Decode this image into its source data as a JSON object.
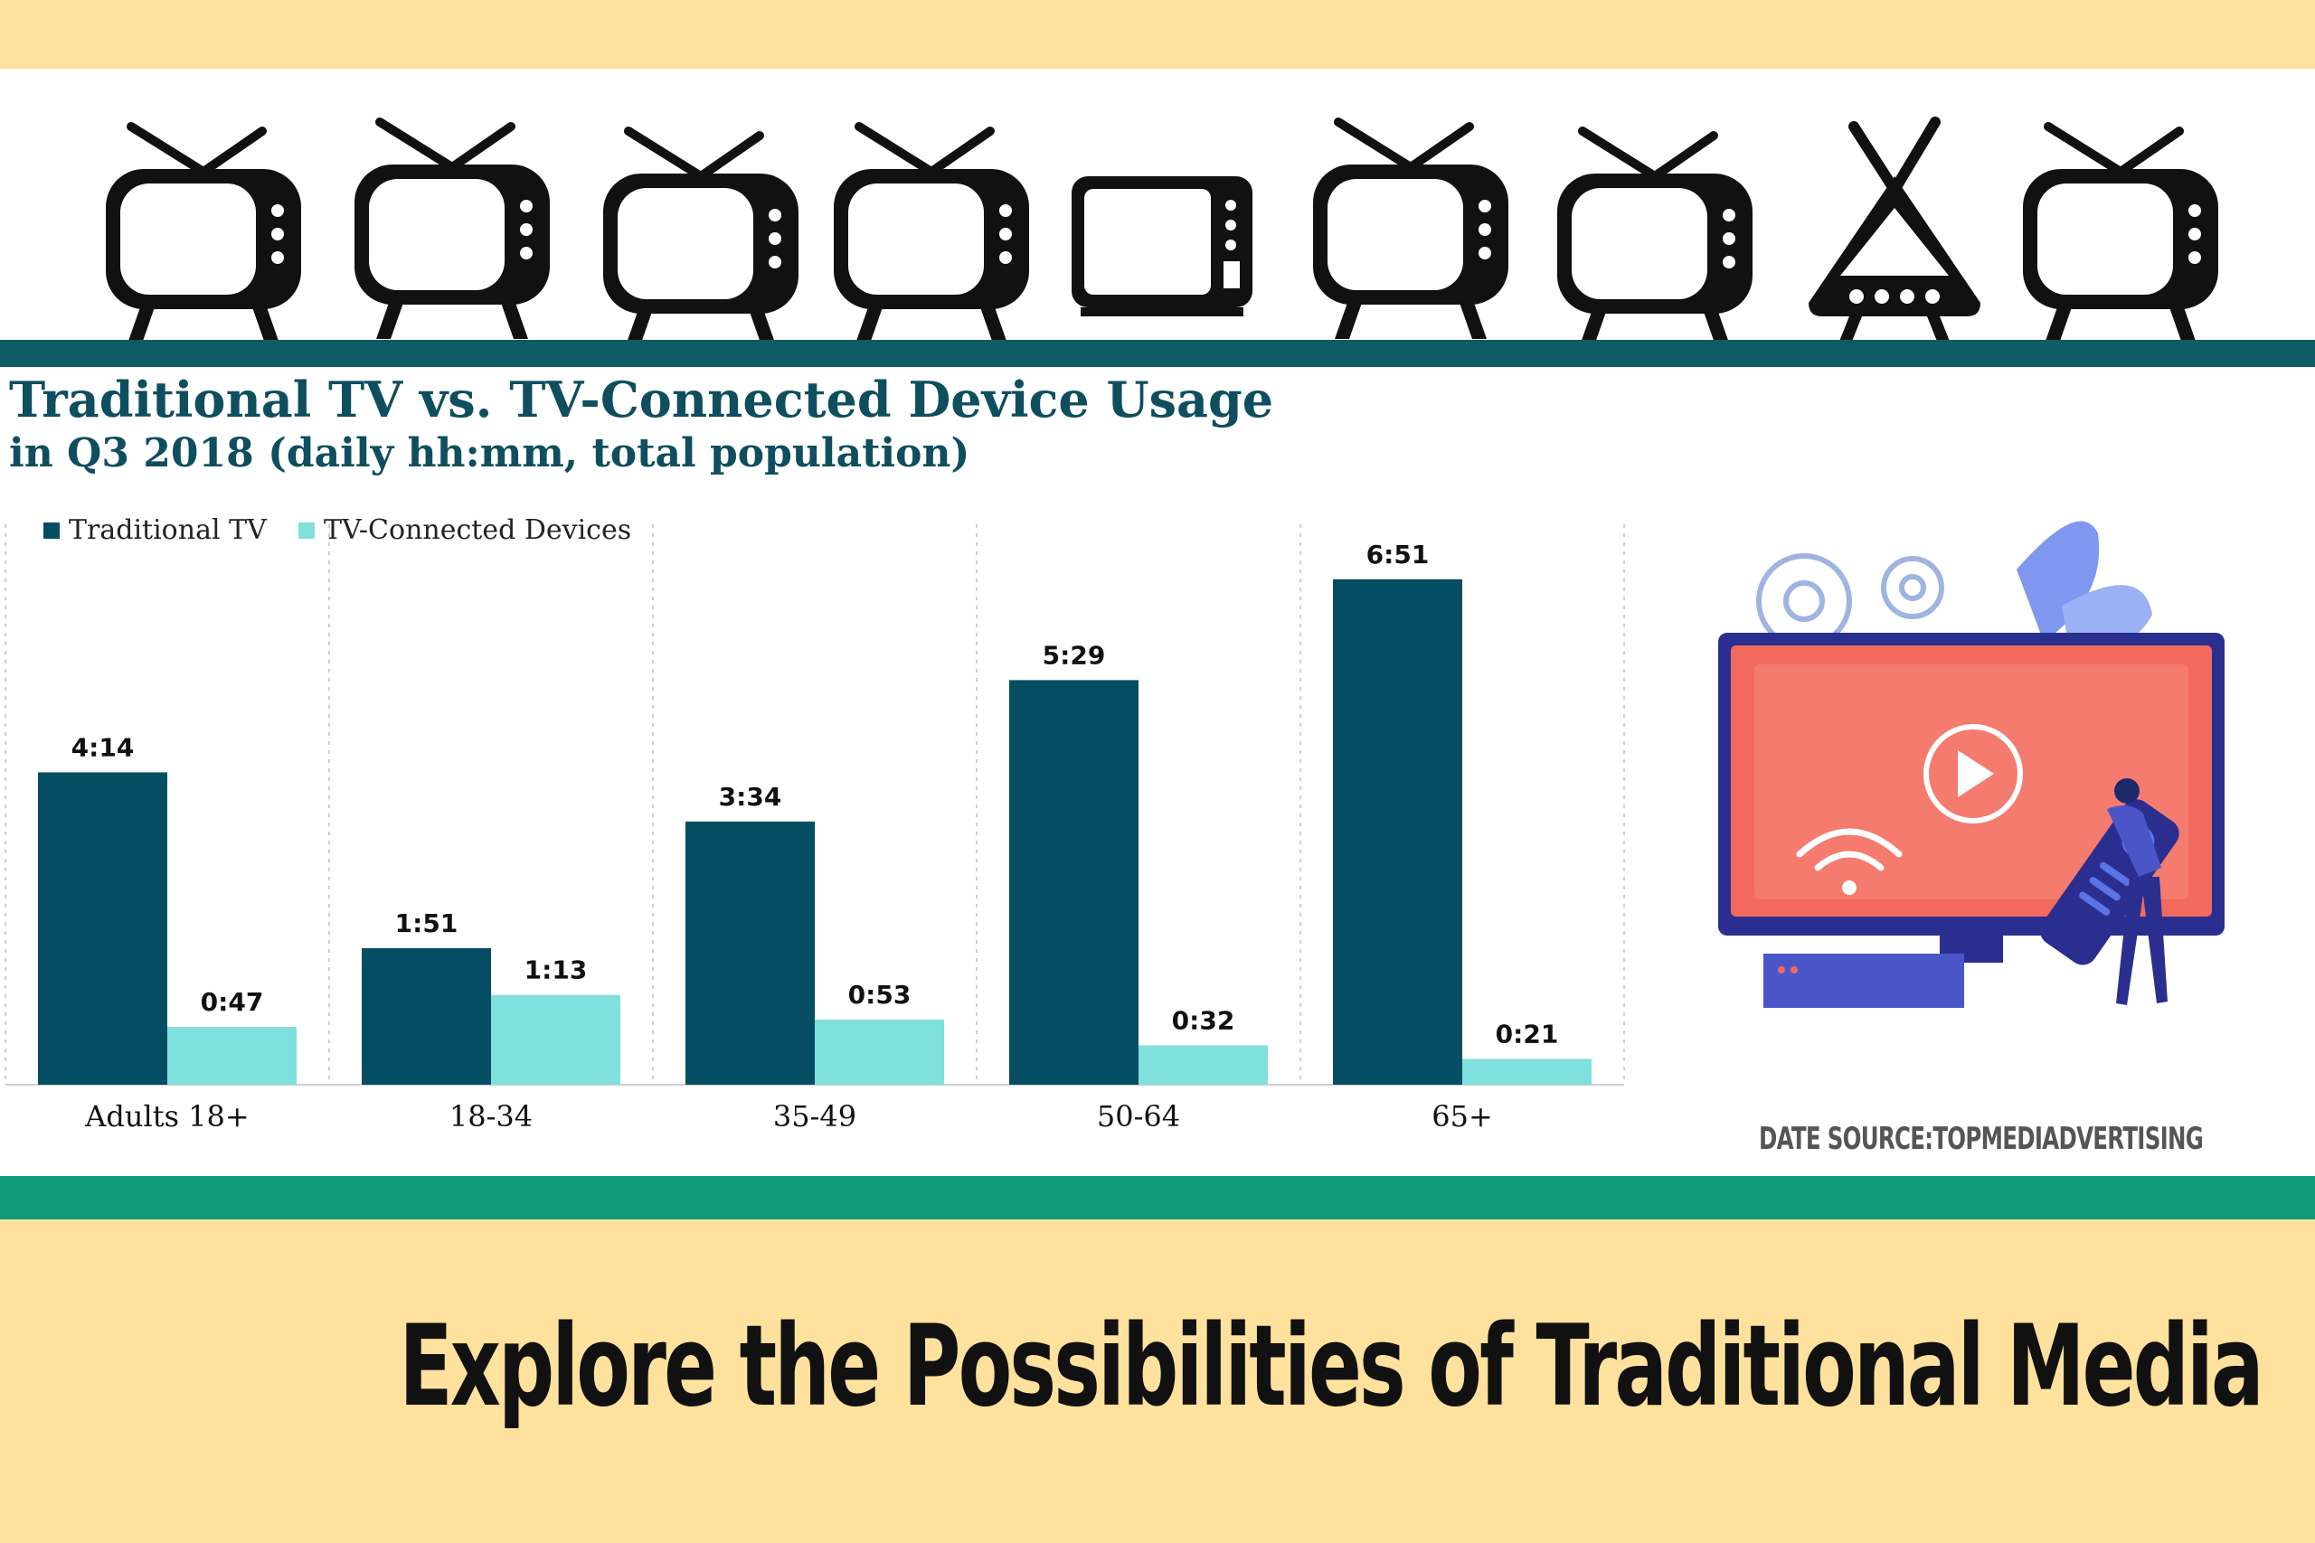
{
  "header_icon": "retro-tv-icon",
  "chart_data": {
    "type": "bar",
    "title": "Traditional TV vs. TV-Connected Device Usage",
    "subtitle": "in Q3 2018 (daily hh:mm, total population)",
    "xlabel": "",
    "ylabel": "",
    "categories": [
      "Adults 18+",
      "18-34",
      "35-49",
      "50-64",
      "65+"
    ],
    "series": [
      {
        "name": "Traditional TV",
        "color": "#054d62",
        "values": [
          254,
          111,
          214,
          329,
          411
        ],
        "labels": [
          "4:14",
          "1:51",
          "3:34",
          "5:29",
          "6:51"
        ]
      },
      {
        "name": "TV-Connected Devices",
        "color": "#7fe0de",
        "values": [
          47,
          73,
          53,
          32,
          21
        ],
        "labels": [
          "0:47",
          "1:13",
          "0:53",
          "0:32",
          "0:21"
        ]
      }
    ],
    "value_unit": "minutes per day",
    "ylim": [
      0,
      430
    ],
    "grid": "vertical dashed separators",
    "legend": "top-left"
  },
  "source_text": "DATE SOURCE:TOPMEDIADVERTISING",
  "headline": "Explore the Possibilities of Traditional Media",
  "illustration_icons": [
    "smart-tv-icon",
    "play-icon",
    "wifi-icon",
    "remote-control-icon",
    "gear-icon"
  ],
  "colors": {
    "accent_band": "#ffe19e",
    "dark_rule": "#0f5a63",
    "green_rule": "#0f9b7c",
    "title_text": "#0e4e5e"
  }
}
